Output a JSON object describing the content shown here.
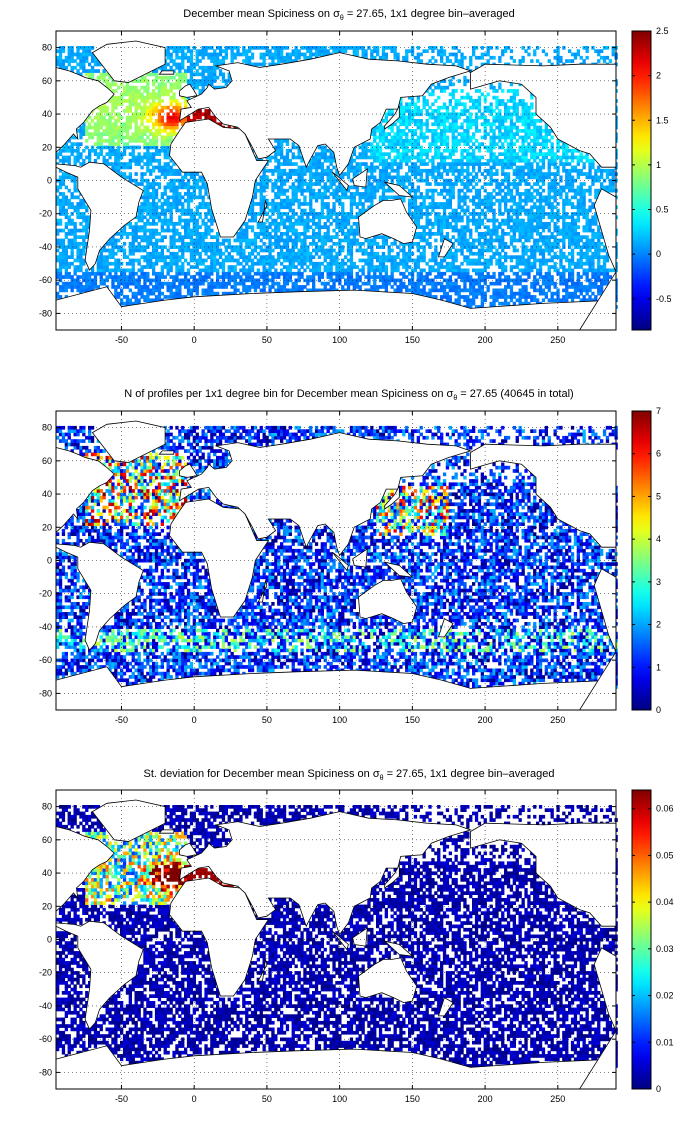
{
  "chart_data": [
    {
      "type": "heatmap",
      "title_prefix": "December mean Spiciness on ",
      "title_symbol": "σ",
      "title_subscript": "θ",
      "title_suffix": " = 27.65, 1x1 degree bin–averaged",
      "x_ticks": [
        "-50",
        "0",
        "50",
        "100",
        "150",
        "200",
        "250"
      ],
      "x_tick_values": [
        -50,
        0,
        50,
        100,
        150,
        200,
        250
      ],
      "y_ticks": [
        "80",
        "60",
        "40",
        "20",
        "0",
        "-20",
        "-40",
        "-60",
        "-80"
      ],
      "y_tick_values": [
        80,
        60,
        40,
        20,
        0,
        -20,
        -40,
        -60,
        -80
      ],
      "xlim": [
        -95,
        290
      ],
      "ylim": [
        -90,
        90
      ],
      "grid": "dotted",
      "colorbar_ticks": [
        "2.5",
        "2",
        "1.5",
        "1",
        "0.5",
        "0",
        "-0.5"
      ],
      "colorbar_tick_values": [
        2.5,
        2,
        1.5,
        1,
        0.5,
        0,
        -0.5
      ],
      "colorbar_range": [
        -0.85,
        2.5
      ],
      "colormap": "jet"
    },
    {
      "type": "heatmap",
      "title_prefix": "N of profiles per 1x1 degree bin for December mean Spiciness on ",
      "title_symbol": "σ",
      "title_subscript": "θ",
      "title_suffix": " = 27.65 (40645 in total)",
      "x_ticks": [
        "-50",
        "0",
        "50",
        "100",
        "150",
        "200",
        "250"
      ],
      "x_tick_values": [
        -50,
        0,
        50,
        100,
        150,
        200,
        250
      ],
      "y_ticks": [
        "80",
        "60",
        "40",
        "20",
        "0",
        "-20",
        "-40",
        "-60",
        "-80"
      ],
      "y_tick_values": [
        80,
        60,
        40,
        20,
        0,
        -20,
        -40,
        -60,
        -80
      ],
      "xlim": [
        -95,
        290
      ],
      "ylim": [
        -90,
        90
      ],
      "grid": "dotted",
      "colorbar_ticks": [
        "7",
        "6",
        "5",
        "4",
        "3",
        "2",
        "1",
        "0"
      ],
      "colorbar_tick_values": [
        7,
        6,
        5,
        4,
        3,
        2,
        1,
        0
      ],
      "colorbar_range": [
        0,
        7
      ],
      "colormap": "jet"
    },
    {
      "type": "heatmap",
      "title_prefix": "St. deviation for December mean Spiciness on ",
      "title_symbol": "σ",
      "title_subscript": "θ",
      "title_suffix": " = 27.65, 1x1 degree bin–averaged",
      "x_ticks": [
        "-50",
        "0",
        "50",
        "100",
        "150",
        "200",
        "250"
      ],
      "x_tick_values": [
        -50,
        0,
        50,
        100,
        150,
        200,
        250
      ],
      "y_ticks": [
        "80",
        "60",
        "40",
        "20",
        "0",
        "-20",
        "-40",
        "-60",
        "-80"
      ],
      "y_tick_values": [
        80,
        60,
        40,
        20,
        0,
        -20,
        -40,
        -60,
        -80
      ],
      "xlim": [
        -95,
        290
      ],
      "ylim": [
        -90,
        90
      ],
      "grid": "dotted",
      "colorbar_ticks": [
        "0.06",
        "0.05",
        "0.04",
        "0.03",
        "0.02",
        "0.01",
        "0"
      ],
      "colorbar_tick_values": [
        0.06,
        0.05,
        0.04,
        0.03,
        0.02,
        0.01,
        0
      ],
      "colorbar_range": [
        0,
        0.064
      ],
      "colormap": "jet"
    }
  ]
}
